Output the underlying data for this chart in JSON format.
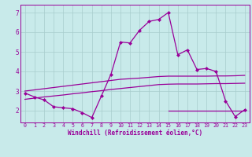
{
  "x": [
    0,
    1,
    2,
    3,
    4,
    5,
    6,
    7,
    8,
    9,
    10,
    11,
    12,
    13,
    14,
    15,
    16,
    17,
    18,
    19,
    20,
    21,
    22,
    23
  ],
  "y_main": [
    2.9,
    2.7,
    2.55,
    2.2,
    2.15,
    2.1,
    1.9,
    1.65,
    2.75,
    3.85,
    5.5,
    5.45,
    6.1,
    6.55,
    6.65,
    7.0,
    4.85,
    5.1,
    4.1,
    4.15,
    4.0,
    2.5,
    1.7,
    2.05
  ],
  "y_upper": [
    3.0,
    3.06,
    3.12,
    3.18,
    3.24,
    3.3,
    3.36,
    3.42,
    3.48,
    3.54,
    3.6,
    3.63,
    3.66,
    3.7,
    3.74,
    3.76,
    3.76,
    3.76,
    3.76,
    3.76,
    3.77,
    3.77,
    3.78,
    3.8
  ],
  "y_lower": [
    2.58,
    2.64,
    2.7,
    2.75,
    2.8,
    2.86,
    2.91,
    2.97,
    3.02,
    3.08,
    3.13,
    3.18,
    3.23,
    3.28,
    3.33,
    3.35,
    3.36,
    3.36,
    3.36,
    3.37,
    3.38,
    3.38,
    3.39,
    3.4
  ],
  "y_hline": [
    2.0,
    2.0,
    2.0,
    2.0,
    2.0,
    2.0,
    2.0,
    2.0,
    2.0
  ],
  "x_hline": [
    15,
    16,
    17,
    18,
    19,
    20,
    21,
    22,
    23
  ],
  "line_color": "#990099",
  "bg_color": "#c8eaea",
  "grid_color": "#a8cccc",
  "xlabel": "Windchill (Refroidissement éolien,°C)",
  "ylim": [
    1.4,
    7.4
  ],
  "xlim": [
    -0.5,
    23.5
  ],
  "yticks": [
    2,
    3,
    4,
    5,
    6,
    7
  ],
  "xticks": [
    0,
    1,
    2,
    3,
    4,
    5,
    6,
    7,
    8,
    9,
    10,
    11,
    12,
    13,
    14,
    15,
    16,
    17,
    18,
    19,
    20,
    21,
    22,
    23
  ]
}
